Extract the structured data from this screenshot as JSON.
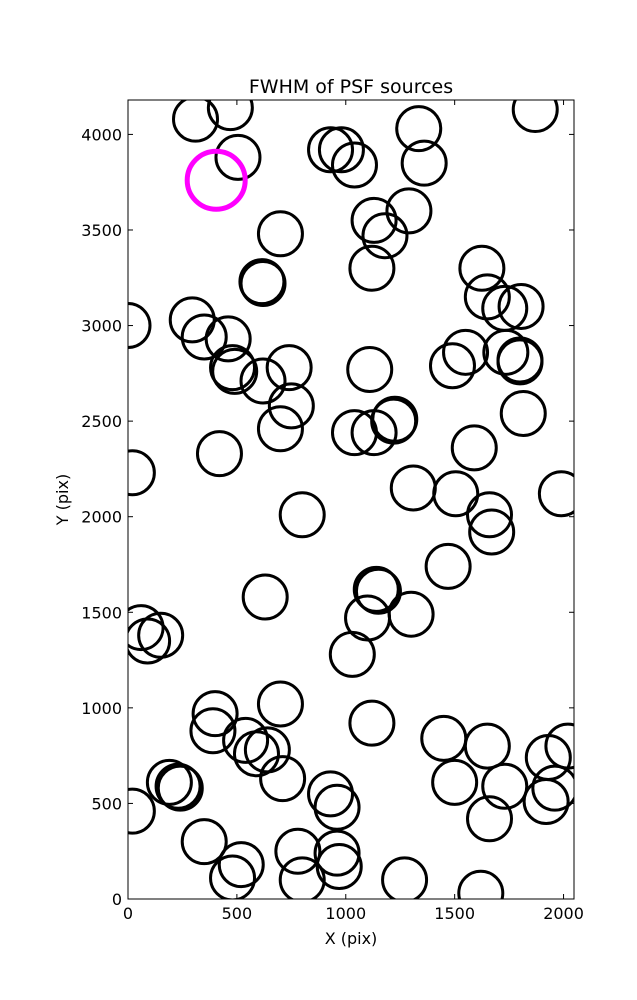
{
  "chart_data": {
    "type": "scatter",
    "title": "FWHM of PSF sources",
    "xlabel": "X (pix)",
    "ylabel": "Y (pix)",
    "xlim": [
      0,
      2048
    ],
    "ylim": [
      0,
      4180
    ],
    "xticks": [
      0,
      500,
      1000,
      1500,
      2000
    ],
    "yticks": [
      0,
      500,
      1000,
      1500,
      2000,
      2500,
      3000,
      3500,
      4000
    ],
    "marker": "circle",
    "grid": false,
    "series": [
      {
        "color": "#000000",
        "points": [
          [
            310,
            4080
          ],
          [
            470,
            4140
          ],
          [
            505,
            3880
          ],
          [
            930,
            3920
          ],
          [
            980,
            3920
          ],
          [
            1040,
            3840
          ],
          [
            1335,
            4030
          ],
          [
            1360,
            3850
          ],
          [
            1870,
            4130
          ],
          [
            700,
            3480
          ],
          [
            1130,
            3550
          ],
          [
            1180,
            3470
          ],
          [
            1290,
            3600
          ],
          [
            1120,
            3300
          ],
          [
            615,
            3230
          ],
          [
            620,
            3220
          ],
          [
            1625,
            3300
          ],
          [
            1650,
            3150
          ],
          [
            1730,
            3090
          ],
          [
            1805,
            3100
          ],
          [
            0,
            3000
          ],
          [
            295,
            3030
          ],
          [
            350,
            2940
          ],
          [
            460,
            2930
          ],
          [
            480,
            2780
          ],
          [
            490,
            2760
          ],
          [
            620,
            2710
          ],
          [
            740,
            2780
          ],
          [
            750,
            2580
          ],
          [
            700,
            2460
          ],
          [
            1110,
            2770
          ],
          [
            1490,
            2790
          ],
          [
            1550,
            2860
          ],
          [
            1735,
            2860
          ],
          [
            1800,
            2820
          ],
          [
            1800,
            2810
          ],
          [
            1815,
            2540
          ],
          [
            1040,
            2440
          ],
          [
            1130,
            2440
          ],
          [
            1220,
            2500
          ],
          [
            1225,
            2510
          ],
          [
            420,
            2330
          ],
          [
            1590,
            2360
          ],
          [
            20,
            2230
          ],
          [
            800,
            2010
          ],
          [
            1310,
            2150
          ],
          [
            1505,
            2120
          ],
          [
            1660,
            2010
          ],
          [
            1670,
            1920
          ],
          [
            1990,
            2120
          ],
          [
            1470,
            1740
          ],
          [
            630,
            1580
          ],
          [
            1140,
            1620
          ],
          [
            1150,
            1610
          ],
          [
            1100,
            1470
          ],
          [
            1300,
            1490
          ],
          [
            60,
            1420
          ],
          [
            90,
            1350
          ],
          [
            150,
            1380
          ],
          [
            1030,
            1280
          ],
          [
            400,
            970
          ],
          [
            390,
            880
          ],
          [
            540,
            830
          ],
          [
            590,
            760
          ],
          [
            640,
            780
          ],
          [
            700,
            1020
          ],
          [
            710,
            630
          ],
          [
            1120,
            920
          ],
          [
            1450,
            840
          ],
          [
            1650,
            800
          ],
          [
            1930,
            740
          ],
          [
            2020,
            800
          ],
          [
            190,
            610
          ],
          [
            230,
            590
          ],
          [
            240,
            580
          ],
          [
            20,
            460
          ],
          [
            930,
            550
          ],
          [
            960,
            480
          ],
          [
            1500,
            610
          ],
          [
            1730,
            590
          ],
          [
            1660,
            420
          ],
          [
            1920,
            510
          ],
          [
            1960,
            580
          ],
          [
            350,
            300
          ],
          [
            480,
            110
          ],
          [
            520,
            180
          ],
          [
            780,
            250
          ],
          [
            800,
            100
          ],
          [
            960,
            240
          ],
          [
            970,
            170
          ],
          [
            1270,
            100
          ],
          [
            1620,
            30
          ]
        ]
      },
      {
        "color": "#ff00ff",
        "points": [
          [
            405,
            3760
          ]
        ]
      }
    ]
  }
}
